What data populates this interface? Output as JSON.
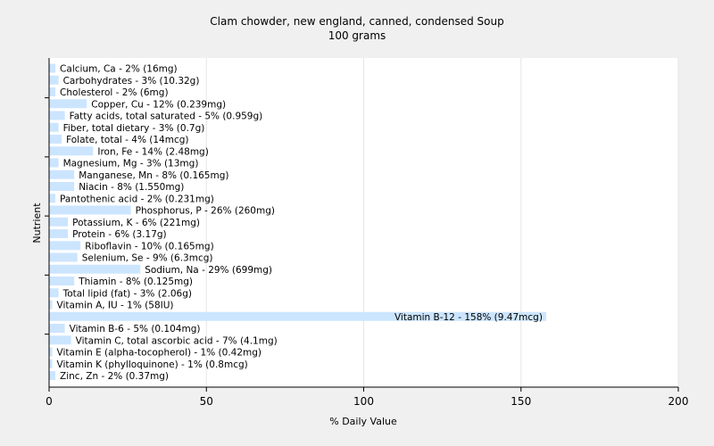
{
  "chart_data": {
    "type": "bar",
    "orientation": "horizontal",
    "title": "Clam chowder, new england, canned, condensed Soup",
    "subtitle": "100 grams",
    "xlabel": "% Daily Value",
    "ylabel": "Nutrient",
    "xlim": [
      0,
      200
    ],
    "xticks": [
      0,
      50,
      100,
      150,
      200
    ],
    "grid": true,
    "bar_color": "#cce5ff",
    "background_color": "#f0f0f0",
    "plot_background_color": "#ffffff",
    "categories": [
      "Calcium, Ca - 2% (16mg)",
      "Carbohydrates - 3% (10.32g)",
      "Cholesterol - 2% (6mg)",
      "Copper, Cu - 12% (0.239mg)",
      "Fatty acids, total saturated - 5% (0.959g)",
      "Fiber, total dietary - 3% (0.7g)",
      "Folate, total - 4% (14mcg)",
      "Iron, Fe - 14% (2.48mg)",
      "Magnesium, Mg - 3% (13mg)",
      "Manganese, Mn - 8% (0.165mg)",
      "Niacin - 8% (1.550mg)",
      "Pantothenic acid - 2% (0.231mg)",
      "Phosphorus, P - 26% (260mg)",
      "Potassium, K - 6% (221mg)",
      "Protein - 6% (3.17g)",
      "Riboflavin - 10% (0.165mg)",
      "Selenium, Se - 9% (6.3mcg)",
      "Sodium, Na - 29% (699mg)",
      "Thiamin - 8% (0.125mg)",
      "Total lipid (fat) - 3% (2.06g)",
      "Vitamin A, IU - 1% (58IU)",
      "Vitamin B-12 - 158% (9.47mcg)",
      "Vitamin B-6 - 5% (0.104mg)",
      "Vitamin C, total ascorbic acid - 7% (4.1mg)",
      "Vitamin E (alpha-tocopherol) - 1% (0.42mg)",
      "Vitamin K (phylloquinone) - 1% (0.8mcg)",
      "Zinc, Zn - 2% (0.37mg)"
    ],
    "values": [
      2,
      3,
      2,
      12,
      5,
      3,
      4,
      14,
      3,
      8,
      8,
      2,
      26,
      6,
      6,
      10,
      9,
      29,
      8,
      3,
      1,
      158,
      5,
      7,
      1,
      1,
      2
    ]
  }
}
